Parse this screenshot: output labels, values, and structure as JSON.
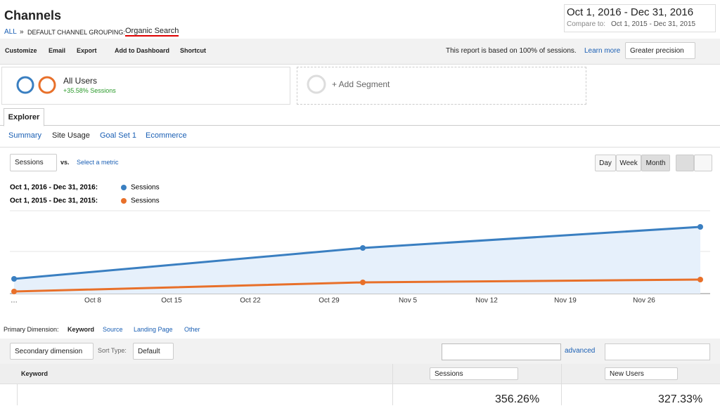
{
  "header": {
    "title": "Channels",
    "breadcrumb_all": "ALL",
    "breadcrumb_sep": "»",
    "grouping": "DEFAULT CHANNEL GROUPING:",
    "grouping_value": "Organic Search",
    "date_range": "Oct 1, 2016 - Dec 31, 2016",
    "compare_label": "Compare to:",
    "compare_range": "Oct 1, 2015 - Dec 31, 2015"
  },
  "toolbar": {
    "items": [
      "Customize",
      "Email",
      "Export",
      "Add to Dashboard",
      "Shortcut"
    ],
    "notice": "This report is based on 100% of sessions.",
    "learn_more": "Learn more",
    "precision": "Greater precision"
  },
  "segments": {
    "name": "All Users",
    "change": "+35.58% Sessions",
    "add": "+ Add Segment"
  },
  "tabs": {
    "active": "Explorer",
    "subtabs": [
      "Summary",
      "Site Usage",
      "Goal Set 1",
      "Ecommerce"
    ]
  },
  "controls": {
    "metric": "Sessions",
    "vs": "vs.",
    "select_metric": "Select a metric",
    "periods": [
      "Day",
      "Week",
      "Month"
    ]
  },
  "chart_data": {
    "type": "line",
    "x": [
      0,
      31,
      61
    ],
    "xlim": [
      0,
      61
    ],
    "xticks": [
      {
        "value": 0,
        "label": "…"
      },
      {
        "value": 7,
        "label": "Oct 8"
      },
      {
        "value": 14,
        "label": "Oct 15"
      },
      {
        "value": 21,
        "label": "Oct 22"
      },
      {
        "value": 28,
        "label": "Oct 29"
      },
      {
        "value": 35,
        "label": "Nov 5"
      },
      {
        "value": 42,
        "label": "Nov 12"
      },
      {
        "value": 49,
        "label": "Nov 19"
      },
      {
        "value": 56,
        "label": "Nov 26"
      }
    ],
    "ylim": [
      0,
      118
    ],
    "series": [
      {
        "label": "Oct 1, 2016 - Dec 31, 2016:",
        "name": "Sessions",
        "color": "#3a7fc1",
        "values": [
          21,
          65,
          95
        ],
        "area": true
      },
      {
        "label": "Oct 1, 2015 - Dec 31, 2015:",
        "name": "Sessions",
        "color": "#e8702a",
        "values": [
          3,
          16,
          20
        ],
        "area": false
      }
    ]
  },
  "dimension": {
    "label": "Primary Dimension:",
    "items": [
      "Keyword",
      "Source",
      "Landing Page",
      "Other"
    ]
  },
  "filter": {
    "secondary": "Secondary dimension",
    "sort_type": "Sort Type:",
    "sort_value": "Default",
    "advanced": "advanced"
  },
  "table": {
    "columns": [
      "Keyword",
      "Sessions",
      "New Users"
    ],
    "summary": [
      "356.26%",
      "327.33%"
    ]
  }
}
